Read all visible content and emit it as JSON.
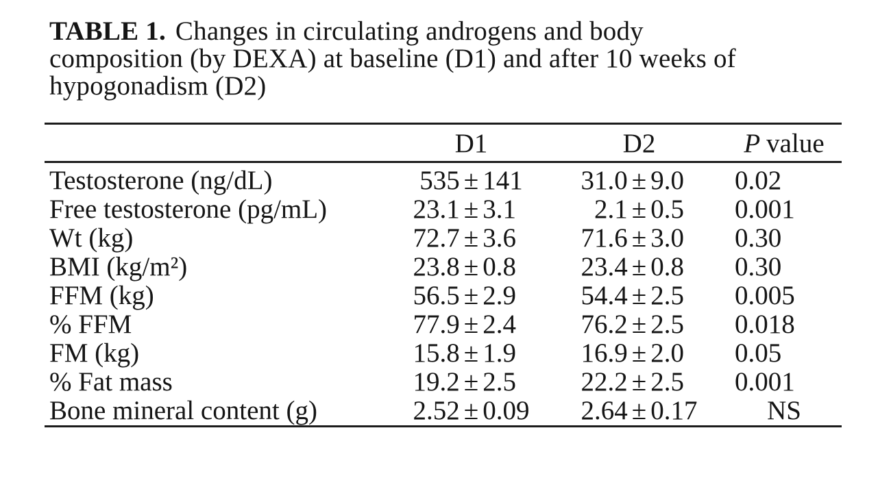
{
  "colors": {
    "background": "#ffffff",
    "text": "#151515",
    "rule": "#1b1b1b"
  },
  "caption": {
    "table_label": "TABLE 1.",
    "line1_rest": "Changes in circulating androgens and body",
    "line2": "composition (by DEXA) at baseline (D1) and after 10 weeks of",
    "line3": "hypogonadism (D2)"
  },
  "table": {
    "pm_symbol": "±",
    "columns": {
      "d1": "D1",
      "d2": "D2",
      "p_italic": "P",
      "p_rest": "value"
    },
    "rows": [
      {
        "label": "Testosterone (ng/dL)",
        "d1_mean": "535",
        "d1_sd": "141",
        "d2_mean": "31.0",
        "d2_sd": "9.0",
        "p": "0.02"
      },
      {
        "label": "Free testosterone (pg/mL)",
        "d1_mean": "23.1",
        "d1_sd": "3.1",
        "d2_mean": "2.1",
        "d2_sd": "0.5",
        "p": "0.001"
      },
      {
        "label": "Wt (kg)",
        "d1_mean": "72.7",
        "d1_sd": "3.6",
        "d2_mean": "71.6",
        "d2_sd": "3.0",
        "p": "0.30"
      },
      {
        "label": "BMI (kg/m²)",
        "d1_mean": "23.8",
        "d1_sd": "0.8",
        "d2_mean": "23.4",
        "d2_sd": "0.8",
        "p": "0.30"
      },
      {
        "label": "FFM (kg)",
        "d1_mean": "56.5",
        "d1_sd": "2.9",
        "d2_mean": "54.4",
        "d2_sd": "2.5",
        "p": "0.005"
      },
      {
        "label": "% FFM",
        "d1_mean": "77.9",
        "d1_sd": "2.4",
        "d2_mean": "76.2",
        "d2_sd": "2.5",
        "p": "0.018"
      },
      {
        "label": "FM (kg)",
        "d1_mean": "15.8",
        "d1_sd": "1.9",
        "d2_mean": "16.9",
        "d2_sd": "2.0",
        "p": "0.05"
      },
      {
        "label": "% Fat mass",
        "d1_mean": "19.2",
        "d1_sd": "2.5",
        "d2_mean": "22.2",
        "d2_sd": "2.5",
        "p": "0.001"
      },
      {
        "label": "Bone mineral content (g)",
        "d1_mean": "2.52",
        "d1_sd": "0.09",
        "d2_mean": "2.64",
        "d2_sd": "0.17",
        "p": "NS"
      }
    ]
  }
}
